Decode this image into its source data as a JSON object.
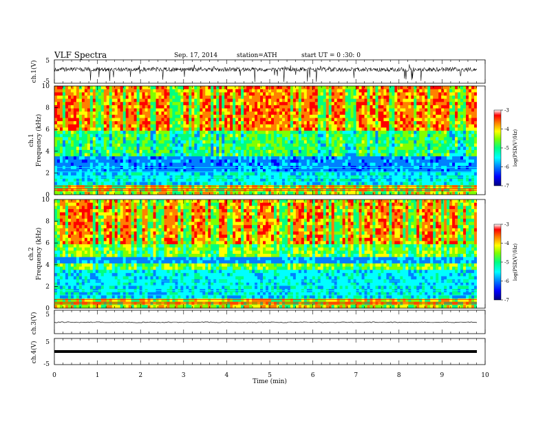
{
  "header": {
    "title": "VLF  Spectra",
    "date": "Sep. 17, 2014",
    "station": "station=ATH",
    "start": "start  UT  =   0 :30: 0"
  },
  "chart_data": [
    {
      "type": "line",
      "ylabel": "ch.1(V)",
      "ylim": [
        -5,
        5
      ],
      "yticks": [
        "5",
        "-5"
      ],
      "xlim": [
        0,
        10
      ]
    },
    {
      "type": "heatmap",
      "ylabel": "ch.1\nFrequency (kHz)",
      "ylabel_top": "ch.1",
      "ylabel_bottom": "Frequency  (kHz)",
      "ylim": [
        0,
        10
      ],
      "yticks": [
        "0",
        "2",
        "4",
        "6",
        "8",
        "10"
      ],
      "xlim": [
        0,
        10
      ],
      "colorbar": {
        "label": "log(PSD(V²/Hz)",
        "range": [
          -7,
          -3
        ],
        "ticks": [
          "-3",
          "-4",
          "-5",
          "-6",
          "-7"
        ]
      }
    },
    {
      "type": "heatmap",
      "ylabel": "ch.2\nFrequency (kHz)",
      "ylabel_top": "ch.2",
      "ylabel_bottom": "Frequency  (kHz)",
      "ylim": [
        0,
        10
      ],
      "yticks": [
        "0",
        "2",
        "4",
        "6",
        "8",
        "10"
      ],
      "xlim": [
        0,
        10
      ],
      "colorbar": {
        "label": "log(PSD(V²/Hz)",
        "range": [
          -7,
          -3
        ],
        "ticks": [
          "-3",
          "-4",
          "-5",
          "-6",
          "-7"
        ]
      }
    },
    {
      "type": "line",
      "ylabel": "ch.3(V)",
      "ylim": [
        -5,
        5
      ],
      "yticks": [
        "5"
      ],
      "xlim": [
        0,
        10
      ]
    },
    {
      "type": "line",
      "ylabel": "ch.4(V)",
      "ylim": [
        -5,
        5
      ],
      "yticks": [
        "5",
        "-5"
      ],
      "xlim": [
        0,
        10
      ],
      "xlabel": "Time  (min)",
      "xticks": [
        "0",
        "1",
        "2",
        "3",
        "4",
        "5",
        "6",
        "7",
        "8",
        "9",
        "10"
      ]
    }
  ],
  "colors": {
    "scale": [
      "#000080",
      "#0000ff",
      "#0080ff",
      "#00ffff",
      "#00ff80",
      "#80ff00",
      "#ffff00",
      "#ff8000",
      "#ff0000",
      "#ffffff"
    ]
  }
}
